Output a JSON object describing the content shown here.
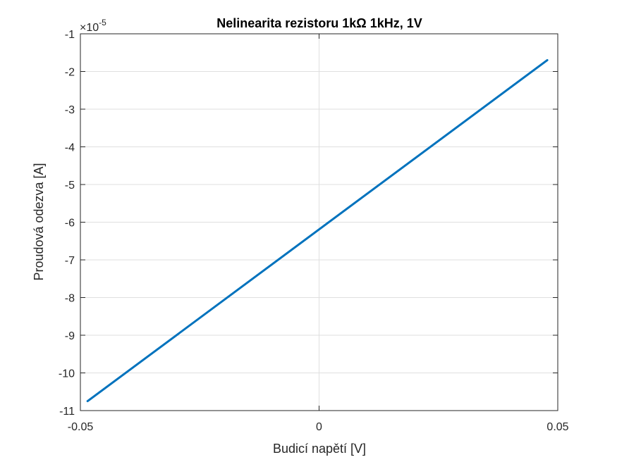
{
  "chart_data": {
    "type": "line",
    "title": "Nelinearita rezistoru 1kΩ 1kHz, 1V",
    "xlabel": "Budicí napětí [V]",
    "ylabel": "Proudová odezva [A]",
    "xlim": [
      -0.05,
      0.05
    ],
    "ylim": [
      -11,
      -1
    ],
    "x_ticks": [
      -0.05,
      0,
      0.05
    ],
    "x_tick_labels": [
      "-0.05",
      "0",
      "0.05"
    ],
    "y_ticks": [
      -11,
      -10,
      -9,
      -8,
      -7,
      -6,
      -5,
      -4,
      -3,
      -2,
      -1
    ],
    "y_tick_labels": [
      "-11",
      "-10",
      "-9",
      "-8",
      "-7",
      "-6",
      "-5",
      "-4",
      "-3",
      "-2",
      "-1"
    ],
    "y_exponent_base": "×10",
    "y_exponent_power": "-5",
    "grid": true,
    "series": [
      {
        "color": "#0072BD",
        "x": [
          -0.0485,
          0.0478
        ],
        "y": [
          -10.75,
          -1.7
        ]
      }
    ]
  }
}
